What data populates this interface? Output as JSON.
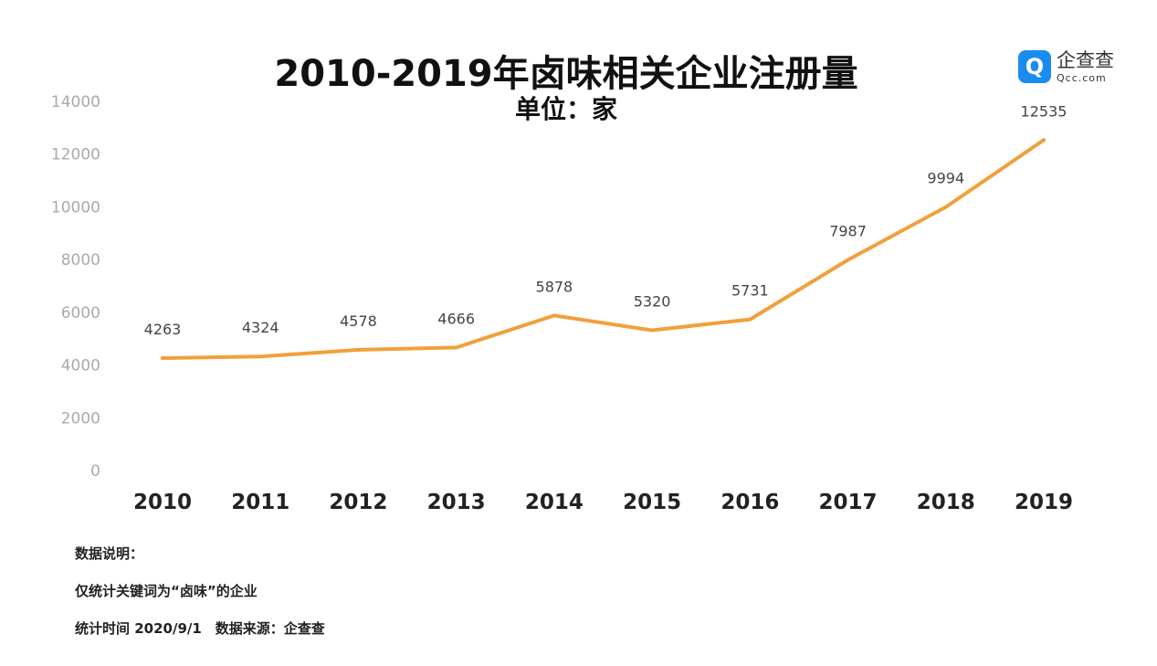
{
  "chart_data": {
    "type": "line",
    "title": "2010-2019年卤味相关企业注册量",
    "subtitle": "单位：家",
    "categories": [
      "2010",
      "2011",
      "2012",
      "2013",
      "2014",
      "2015",
      "2016",
      "2017",
      "2018",
      "2019"
    ],
    "values": [
      4263,
      4324,
      4578,
      4666,
      5878,
      5320,
      5731,
      7987,
      9994,
      12535
    ],
    "ylim": [
      0,
      14000
    ],
    "yticks": [
      0,
      2000,
      4000,
      6000,
      8000,
      10000,
      12000,
      14000
    ],
    "grid": false,
    "line_color": "#f0a03c",
    "xlabel": "",
    "ylabel": ""
  },
  "logo": {
    "mark": "Q",
    "name": "企查查",
    "domain": "Qcc.com"
  },
  "notes": {
    "heading": "数据说明：",
    "line1": "仅统计关键词为“卤味”的企业",
    "line2": "统计时间 2020/9/1　数据来源：企查查"
  }
}
